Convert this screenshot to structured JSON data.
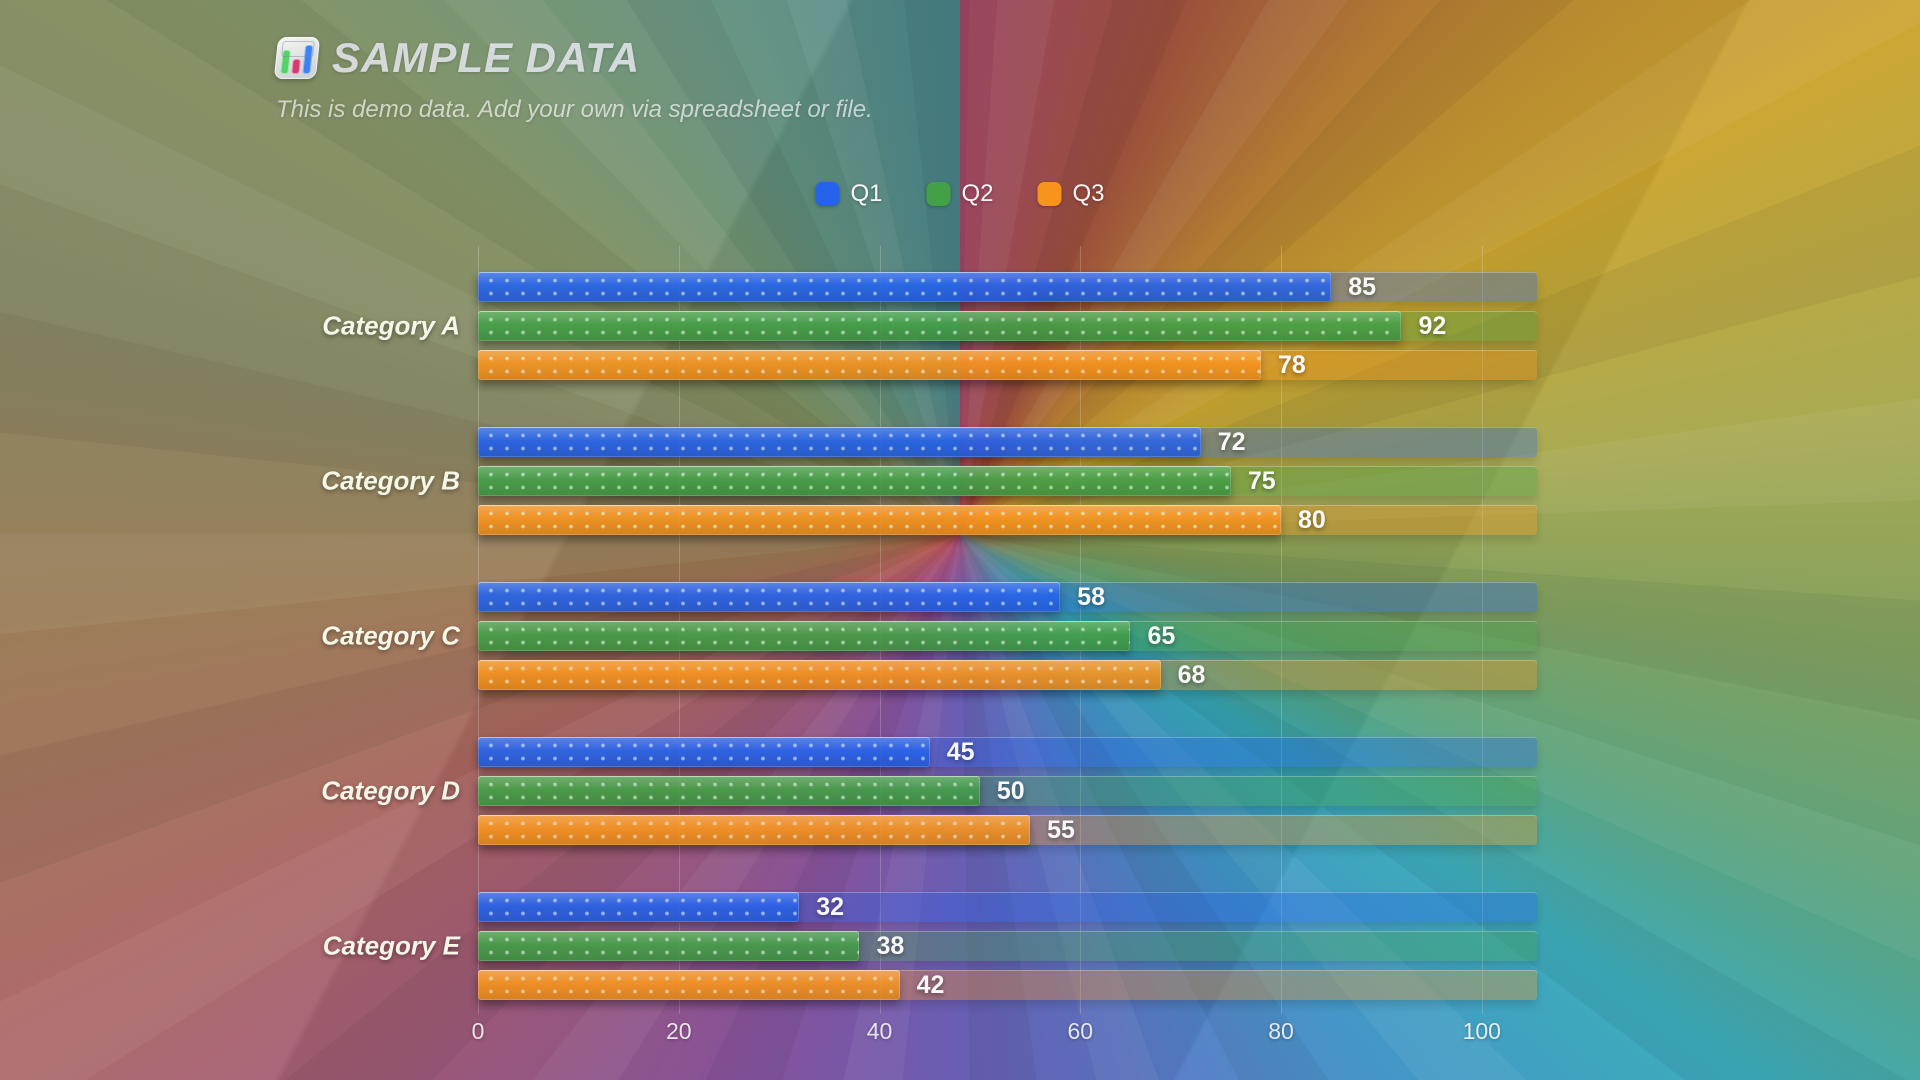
{
  "header": {
    "title": "SAMPLE DATA",
    "subtitle": "This is demo data. Add your own via spreadsheet or file.",
    "logo_icon": "bar-chart-icon",
    "logo_bar_colors": {
      "green": "#52d36a",
      "pink": "#d63b6e",
      "blue": "#3b82f6"
    }
  },
  "legend": [
    {
      "label": "Q1",
      "color": "#2563eb"
    },
    {
      "label": "Q2",
      "color": "#43a047"
    },
    {
      "label": "Q3",
      "color": "#f7941e"
    }
  ],
  "chart_data": {
    "type": "bar",
    "orientation": "horizontal",
    "title": "SAMPLE DATA",
    "categories": [
      "Category A",
      "Category B",
      "Category C",
      "Category D",
      "Category E"
    ],
    "series": [
      {
        "name": "Q1",
        "color": "#2563eb",
        "values": [
          85,
          72,
          58,
          45,
          32
        ]
      },
      {
        "name": "Q2",
        "color": "#43a047",
        "values": [
          92,
          75,
          65,
          50,
          38
        ]
      },
      {
        "name": "Q3",
        "color": "#f7941e",
        "values": [
          78,
          80,
          68,
          55,
          42
        ]
      }
    ],
    "x_ticks": [
      0,
      20,
      40,
      60,
      80,
      100
    ],
    "xlim": [
      0,
      105.5
    ],
    "track_max": 105.5,
    "grid": true,
    "value_labels": true,
    "legend_position": "top-center"
  }
}
